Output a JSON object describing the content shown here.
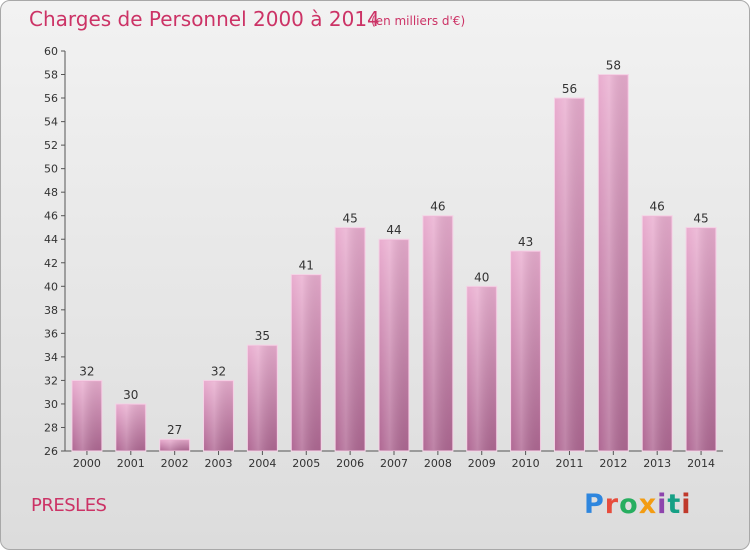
{
  "header": {
    "title": "Charges de Personnel 2000 à 2014",
    "subtitle": "(en milliers d'€)"
  },
  "footer": {
    "commune": "PRESLES",
    "logo_text": "Proxiti",
    "logo_colors": [
      "#2e86de",
      "#e74c3c",
      "#27ae60",
      "#f39c12",
      "#8e44ad",
      "#16a085",
      "#c0392b"
    ]
  },
  "chart_data": {
    "type": "bar",
    "categories": [
      "2000",
      "2001",
      "2002",
      "2003",
      "2004",
      "2005",
      "2006",
      "2007",
      "2008",
      "2009",
      "2010",
      "2011",
      "2012",
      "2013",
      "2014"
    ],
    "values": [
      32,
      30,
      27,
      32,
      35,
      41,
      45,
      44,
      46,
      40,
      43,
      56,
      58,
      46,
      45
    ],
    "ylim": [
      26,
      60
    ],
    "yticks": [
      26,
      28,
      30,
      32,
      34,
      36,
      38,
      40,
      42,
      44,
      46,
      48,
      50,
      52,
      54,
      56,
      58,
      60
    ],
    "grid": false,
    "bar_color": "#d98bb8",
    "bar_color_light": "#e9a9cc",
    "bar_color_dark": "#b86a9a"
  }
}
